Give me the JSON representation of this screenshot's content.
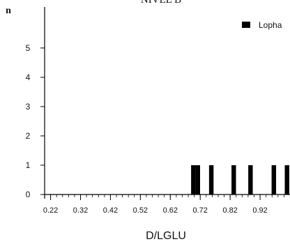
{
  "chart_data": {
    "type": "bar",
    "title": "NIVEL B",
    "xlabel": "D/LGLU",
    "ylabel": "n",
    "xlim": [
      0.2,
      1.02
    ],
    "ylim": [
      0,
      6.4
    ],
    "x_ticks": [
      "0.22",
      "0.32",
      "0.42",
      "0.52",
      "0.62",
      "0.72",
      "0.82",
      "0.92"
    ],
    "y_ticks": [
      "0",
      "1",
      "2",
      "3",
      "4",
      "5"
    ],
    "bar_width": 0.015,
    "series": [
      {
        "name": "Lopha",
        "color": "#000000",
        "points": [
          {
            "x": 0.697,
            "y": 1
          },
          {
            "x": 0.712,
            "y": 1
          },
          {
            "x": 0.757,
            "y": 1
          },
          {
            "x": 0.832,
            "y": 1
          },
          {
            "x": 0.888,
            "y": 1
          },
          {
            "x": 0.966,
            "y": 1
          },
          {
            "x": 1.01,
            "y": 1
          }
        ]
      }
    ],
    "legend": "top-right",
    "grid": false
  }
}
